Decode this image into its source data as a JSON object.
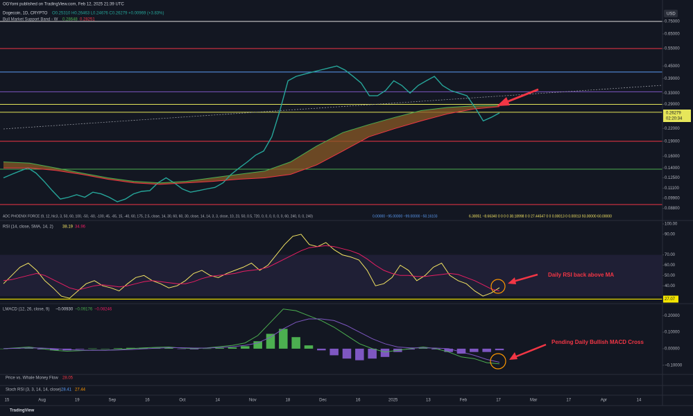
{
  "header": {
    "publisher": "OGYomi published on TradingView.com, Feb 12, 2025 21:39 UTC",
    "symbol": "Dogecoin, 1D, CRYPTO",
    "ohlc": "O0.25310 H0.26463 L0.24676 C0.26279 +0.00969 (+3.83%)",
    "indicator": "Bull Market Support Band - W",
    "currency": "USD",
    "countdown": "02:20:34"
  },
  "indicators": {
    "adc": "ADC PHOENIX FORCE (9, 12, hlc3, 3, 50, 60, 100, -50, -60, -100, 45, -65, 15, -40, 60, 175, 2.5, close, 14, 30, 60, 60, 30, close, 14, 14, 3, 3, close, 10, 23, 50, 0.5, 720, 0, 0, 0, 0, 0, 0, 60, 240, 0, 0, 240)",
    "adc_values": "0.00000  −95.00000  −99.00000  −50.16103",
    "adc_values_2": "6.38051  −8.66340  0  0  0  0  38.18998  0  0  27.44547  0  0  0.00013  0  0.00013  93.00000  60.00000",
    "whale": "Price vs. Whale Money Flow",
    "whale_value": "28.05",
    "stoch": "Stoch RSI (3, 3, 14, 14, close)",
    "stoch_values": [
      "28.41",
      "27.44"
    ]
  },
  "time_axis": [
    "15",
    "Aug",
    "19",
    "Sep",
    "16",
    "Oct",
    "14",
    "Nov",
    "18",
    "Dec",
    "16",
    "2025",
    "13",
    "Feb",
    "17",
    "Mar",
    "17",
    "Apr",
    "14"
  ],
  "footer": "TradingView",
  "chart_data": [
    {
      "type": "line",
      "log_scale": true,
      "ylim": [
        0.085,
        0.78
      ],
      "yticks": [
        {
          "value": 0.75,
          "label": "0.75000"
        },
        {
          "value": 0.65,
          "label": "0.65000"
        },
        {
          "value": 0.55,
          "label": "0.55000"
        },
        {
          "value": 0.45,
          "label": "0.45000"
        },
        {
          "value": 0.39,
          "label": "0.39000"
        },
        {
          "value": 0.33,
          "label": "0.33000"
        },
        {
          "value": 0.29,
          "label": "0.29000"
        },
        {
          "value": 0.22,
          "label": "0.22000"
        },
        {
          "value": 0.19,
          "label": "0.19000"
        },
        {
          "value": 0.16,
          "label": "0.16000"
        },
        {
          "value": 0.14,
          "label": "0.14000"
        },
        {
          "value": 0.125,
          "label": "0.12500"
        },
        {
          "value": 0.111,
          "label": "0.11100"
        },
        {
          "value": 0.099,
          "label": "0.09900"
        },
        {
          "value": 0.088,
          "label": "0.08800"
        }
      ],
      "levels": [
        {
          "value": 0.75,
          "color": "#e0e0e0"
        },
        {
          "value": 0.55,
          "color": "#f23645"
        },
        {
          "value": 0.42,
          "color": "#5b9cf6"
        },
        {
          "value": 0.335,
          "color": "#7e57c2"
        },
        {
          "value": 0.29,
          "color": "#e6e65a"
        },
        {
          "value": 0.265,
          "color": "#e6e65a"
        },
        {
          "value": 0.19,
          "color": "#f23645"
        },
        {
          "value": 0.138,
          "color": "#4caf50"
        },
        {
          "value": 0.092,
          "color": "#f23645"
        }
      ],
      "band_fill": "#8a5a26",
      "series": [
        {
          "color": "#26a69a",
          "style": "line",
          "values": [
            0.125,
            0.13,
            0.135,
            0.14,
            0.132,
            0.12,
            0.108,
            0.098,
            0.1,
            0.103,
            0.1,
            0.106,
            0.104,
            0.1,
            0.095,
            0.098,
            0.104,
            0.107,
            0.108,
            0.118,
            0.125,
            0.118,
            0.11,
            0.106,
            0.108,
            0.11,
            0.112,
            0.118,
            0.13,
            0.14,
            0.15,
            0.162,
            0.17,
            0.2,
            0.27,
            0.38,
            0.4,
            0.41,
            0.42,
            0.43,
            0.44,
            0.45,
            0.43,
            0.4,
            0.37,
            0.32,
            0.32,
            0.34,
            0.38,
            0.36,
            0.33,
            0.36,
            0.38,
            0.4,
            0.36,
            0.34,
            0.33,
            0.32,
            0.28,
            0.24,
            0.25,
            0.26279
          ]
        },
        {
          "color": "#4caf50",
          "style": "line",
          "values": [
            0.15,
            0.148,
            0.14,
            0.132,
            0.125,
            0.12,
            0.118,
            0.12,
            0.125,
            0.13,
            0.135,
            0.15,
            0.18,
            0.21,
            0.23,
            0.25,
            0.27,
            0.28,
            0.285,
            0.28648
          ]
        },
        {
          "color": "#f23645",
          "style": "line",
          "values": [
            0.14,
            0.14,
            0.136,
            0.13,
            0.123,
            0.118,
            0.116,
            0.118,
            0.12,
            0.123,
            0.125,
            0.13,
            0.145,
            0.17,
            0.2,
            0.22,
            0.24,
            0.26,
            0.275,
            0.28251
          ]
        }
      ]
    },
    {
      "type": "line",
      "title": "RSI (14, close, SMA, 14, 2)",
      "ylim": [
        24,
        100
      ],
      "yticks": [
        {
          "value": 100,
          "label": "100.00"
        },
        {
          "value": 90,
          "label": "90.00"
        },
        {
          "value": 70,
          "label": "70.00"
        },
        {
          "value": 60,
          "label": "60.00"
        },
        {
          "value": 50,
          "label": "50.00"
        },
        {
          "value": 40,
          "label": "40.00"
        }
      ],
      "band": [
        30,
        70
      ],
      "band_color": "rgba(126,87,194,0.12)",
      "marker_value": 27.07,
      "marker_color": "#f5e600",
      "annotation": "Daily RSI back above MA",
      "series": [
        {
          "color": "#f5e663",
          "style": "line",
          "values": [
            42,
            50,
            58,
            62,
            55,
            45,
            38,
            30,
            28,
            35,
            42,
            45,
            40,
            38,
            35,
            42,
            48,
            50,
            45,
            42,
            38,
            40,
            45,
            52,
            55,
            50,
            48,
            52,
            55,
            58,
            62,
            55,
            60,
            70,
            80,
            88,
            90,
            80,
            78,
            82,
            75,
            70,
            68,
            65,
            55,
            40,
            42,
            48,
            60,
            55,
            45,
            50,
            58,
            62,
            50,
            45,
            42,
            35,
            30,
            33,
            38.19
          ]
        },
        {
          "color": "#e91e63",
          "style": "line",
          "values": [
            45,
            46,
            48,
            50,
            52,
            50,
            46,
            42,
            38,
            36,
            38,
            40,
            41,
            40,
            39,
            40,
            42,
            44,
            45,
            44,
            43,
            42,
            42,
            44,
            47,
            49,
            50,
            51,
            52,
            54,
            55,
            56,
            58,
            62,
            66,
            70,
            74,
            77,
            78,
            79,
            78,
            76,
            74,
            71,
            66,
            60,
            55,
            52,
            50,
            50,
            49,
            49,
            50,
            51,
            52,
            51,
            48,
            45,
            41,
            37,
            34.96
          ]
        }
      ]
    },
    {
      "type": "line",
      "title": "LMACD (12, 26, close, 9)",
      "legend_values": [
        "−0.00930",
        "−0.09176",
        "−0.08246"
      ],
      "ylim": [
        -0.16,
        0.26
      ],
      "yticks": [
        {
          "value": 0.2,
          "label": "0.20000"
        },
        {
          "value": 0.1,
          "label": "0.10000"
        },
        {
          "value": 0,
          "label": "0.00000"
        },
        {
          "value": -0.1,
          "label": "−0.10000"
        }
      ],
      "annotation": "Pending Daily Bullish MACD Cross",
      "up_color": "#4caf50",
      "down_color": "#7e57c2",
      "series": [
        {
          "style": "histogram",
          "values": [
            0,
            0.003,
            0.005,
            -0.004,
            -0.01,
            -0.01,
            -0.003,
            0.002,
            0,
            0.003,
            0.005,
            0.006,
            0.005,
            0.004,
            -0.002,
            -0.004,
            0.001,
            0.005,
            0.008,
            0.015,
            0.045,
            0.09,
            0.12,
            0.07,
            0.02,
            -0.01,
            -0.04,
            -0.06,
            -0.07,
            -0.06,
            -0.05,
            -0.02,
            -0.005,
            0.005,
            -0.004,
            -0.02,
            -0.03,
            -0.02,
            -0.02,
            -0.0093
          ]
        },
        {
          "color": "#4caf50",
          "style": "line",
          "values": [
            0,
            0.005,
            0.01,
            0,
            -0.01,
            -0.015,
            -0.012,
            -0.008,
            -0.01,
            -0.005,
            0,
            0.005,
            0.008,
            0.01,
            0.004,
            0,
            0.005,
            0.012,
            0.02,
            0.035,
            0.08,
            0.16,
            0.24,
            0.23,
            0.2,
            0.17,
            0.13,
            0.08,
            0.03,
            0,
            -0.02,
            -0.01,
            0,
            0.01,
            0,
            -0.02,
            -0.05,
            -0.06,
            -0.085,
            -0.09176
          ]
        },
        {
          "color": "#7e57c2",
          "style": "line",
          "values": [
            0,
            0.002,
            0.005,
            0.004,
            0,
            -0.005,
            -0.009,
            -0.01,
            -0.01,
            -0.008,
            -0.005,
            -0.001,
            0.003,
            0.006,
            0.006,
            0.004,
            0.004,
            0.007,
            0.012,
            0.02,
            0.035,
            0.07,
            0.12,
            0.16,
            0.18,
            0.18,
            0.17,
            0.14,
            0.1,
            0.06,
            0.03,
            0.01,
            0.005,
            0.005,
            0.004,
            0,
            -0.02,
            -0.04,
            -0.065,
            -0.08246
          ]
        }
      ]
    }
  ]
}
